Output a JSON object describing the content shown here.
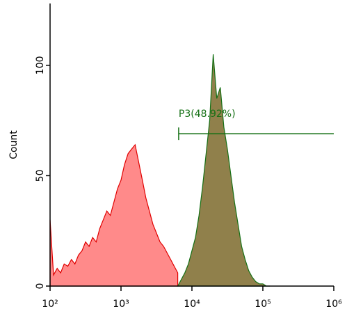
{
  "chart_data": {
    "type": "histogram-overlay",
    "ylabel": "Count",
    "xscale": "log",
    "xlim": [
      100,
      1000000
    ],
    "ylim": [
      0,
      128
    ],
    "xticks": [
      {
        "value": 100,
        "label": "10²"
      },
      {
        "value": 1000,
        "label": "10³"
      },
      {
        "value": 10000,
        "label": "10⁴"
      },
      {
        "value": 100000,
        "label": "10⁵"
      },
      {
        "value": 1000000,
        "label": "10⁶"
      }
    ],
    "yticks": [
      0,
      50,
      100
    ],
    "x": [
      100,
      112,
      126,
      141,
      158,
      178,
      200,
      224,
      251,
      282,
      316,
      355,
      398,
      447,
      501,
      562,
      631,
      708,
      794,
      891,
      1000,
      1120,
      1260,
      1410,
      1580,
      1780,
      2000,
      2240,
      2510,
      2820,
      3160,
      3550,
      3980,
      4470,
      5010,
      5620,
      6310,
      7080,
      7940,
      8910,
      10000,
      11220,
      12590,
      14130,
      15850,
      17780,
      19950,
      22390,
      25120,
      28180,
      31620,
      35480,
      39810,
      44670,
      50120,
      56230,
      63100,
      70790,
      79430,
      89130,
      100000,
      112200,
      125900
    ],
    "series": [
      {
        "color": "#e00000",
        "fill": "#ff8a8a",
        "values": [
          30,
          5,
          8,
          6,
          10,
          9,
          12,
          10,
          14,
          16,
          20,
          18,
          22,
          20,
          26,
          30,
          34,
          32,
          38,
          44,
          48,
          55,
          60,
          62,
          64,
          56,
          48,
          40,
          34,
          28,
          24,
          20,
          18,
          15,
          12,
          9,
          6,
          null,
          null,
          null,
          null,
          null,
          null,
          null,
          null,
          null,
          null,
          null,
          null,
          null,
          null,
          null,
          null,
          null,
          null,
          null,
          null,
          null,
          null,
          null,
          null,
          null,
          null
        ]
      },
      {
        "color": "#157015",
        "fill": "#7d6a2c",
        "values": [
          null,
          null,
          null,
          null,
          null,
          null,
          null,
          null,
          null,
          null,
          null,
          null,
          null,
          null,
          null,
          null,
          null,
          null,
          null,
          null,
          null,
          null,
          null,
          null,
          null,
          null,
          null,
          null,
          null,
          null,
          null,
          null,
          null,
          null,
          null,
          null,
          0,
          3,
          6,
          10,
          16,
          22,
          32,
          45,
          60,
          75,
          105,
          85,
          90,
          72,
          62,
          50,
          38,
          28,
          18,
          12,
          7,
          4,
          2,
          1,
          1,
          0,
          0
        ]
      }
    ],
    "gate": {
      "label": "P3(48.92%)",
      "range": [
        6500,
        1000000
      ],
      "y": 69,
      "color": "#157015"
    }
  }
}
